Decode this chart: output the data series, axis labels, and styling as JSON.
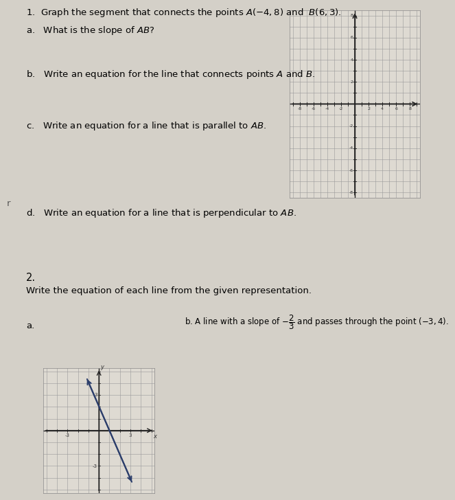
{
  "bg_color": "#c8c5bc",
  "title1": "1.  Graph the segment that connects the points $A(-4,8)$ and  $B(6,3)$.",
  "q1a": "a.   What is the slope of $AB$?",
  "q1b": "b.   Write an equation for the line that connects points $A$ and $B$.",
  "q1c": "c.   Write an equation for a line that is parallel to $AB$.",
  "q1d": "d.   Write an equation for a line that is perpendicular to $AB$.",
  "title2": "2.",
  "q2_intro": "Write the equation of each line from the given representation.",
  "q2a_label": "a.",
  "q2b_text": "b. A line with a slope of $-\\dfrac{2}{3}$ and passes through the point $(-3, 4)$.",
  "grid1_xlim": [
    -9,
    9
  ],
  "grid1_ylim": [
    -8,
    8
  ],
  "grid2_xlim": [
    -5,
    5
  ],
  "grid2_ylim": [
    -5,
    5
  ],
  "font_size_main": 9.5,
  "font_size_label": 8.5,
  "grid_color": "#999999",
  "axis_color": "#222222",
  "line_color": "#333355",
  "label_r": "r",
  "paper_color": "#d4d0c8"
}
